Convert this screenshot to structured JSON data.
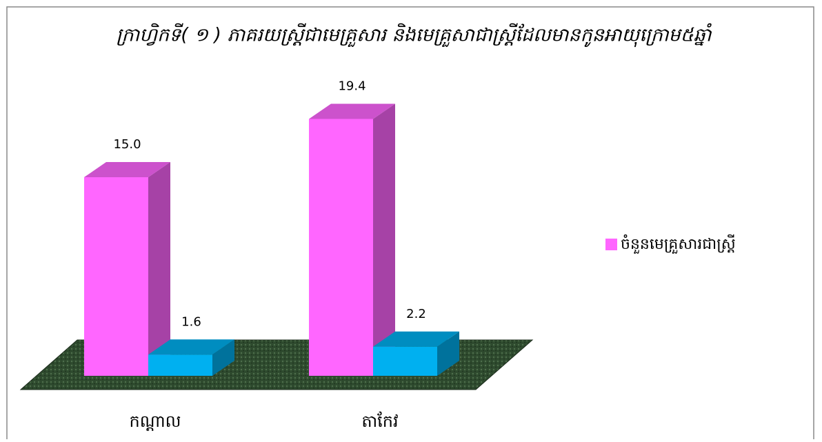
{
  "chart_data": {
    "type": "bar3d",
    "title": "ក្រាហ្វិកទី( ១ ) ភាគរយស្ត្រីជាមេគ្រួសារ និងមេគ្រួសាជាស្ត្រីដែលមានកូនអាយុក្រោម៥ឆ្នាំ",
    "categories": [
      "កណ្តាល",
      "តាកែវ"
    ],
    "series": [
      {
        "name": "ចំនួនមេគ្រួសារជាស្ត្រី",
        "color": "#ff66ff",
        "values": [
          15.0,
          19.4
        ],
        "value_labels": [
          "15.0",
          "19.4"
        ]
      },
      {
        "color": "#00b0f0",
        "values": [
          1.6,
          2.2
        ]
      }
    ],
    "ylim": [
      0,
      20
    ],
    "legend": "right"
  }
}
